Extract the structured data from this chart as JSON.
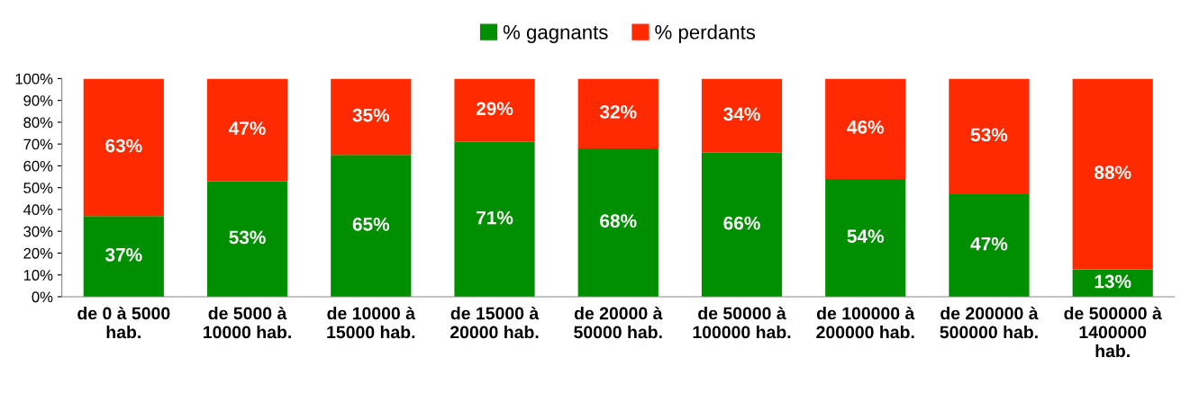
{
  "chart_data": {
    "type": "bar",
    "stacked": true,
    "categories": [
      "de 0 à 5000\nhab.",
      "de 5000 à\n10000 hab.",
      "de 10000 à\n15000 hab.",
      "de 15000 à\n20000 hab.",
      "de 20000 à\n50000 hab.",
      "de 50000 à\n100000 hab.",
      "de 100000 à\n200000 hab.",
      "de 200000 à\n500000 hab.",
      "de 500000 à\n1400000\nhab."
    ],
    "series": [
      {
        "name": "% gagnants",
        "color": "#008f00",
        "values": [
          37,
          53,
          65,
          71,
          68,
          66,
          54,
          47,
          12.5
        ],
        "value_labels": [
          "37%",
          "53%",
          "65%",
          "71%",
          "68%",
          "66%",
          "54%",
          "47%",
          "13%"
        ]
      },
      {
        "name": "% perdants",
        "color": "#ff2a00",
        "values": [
          63,
          47,
          35,
          29,
          32,
          34,
          46,
          53,
          87.5
        ],
        "value_labels": [
          "63%",
          "47%",
          "35%",
          "29%",
          "32%",
          "34%",
          "46%",
          "53%",
          "88%"
        ]
      }
    ],
    "ylim": [
      0,
      100
    ],
    "yticks": [
      {
        "value": 0,
        "label": "0%"
      },
      {
        "value": 10,
        "label": "10%"
      },
      {
        "value": 20,
        "label": "20%"
      },
      {
        "value": 30,
        "label": "30%"
      },
      {
        "value": 40,
        "label": "40%"
      },
      {
        "value": 50,
        "label": "50%"
      },
      {
        "value": 60,
        "label": "60%"
      },
      {
        "value": 70,
        "label": "70%"
      },
      {
        "value": 80,
        "label": "80%"
      },
      {
        "value": 90,
        "label": "90%"
      },
      {
        "value": 100,
        "label": "100%"
      }
    ],
    "grid": false,
    "legend": "top"
  }
}
